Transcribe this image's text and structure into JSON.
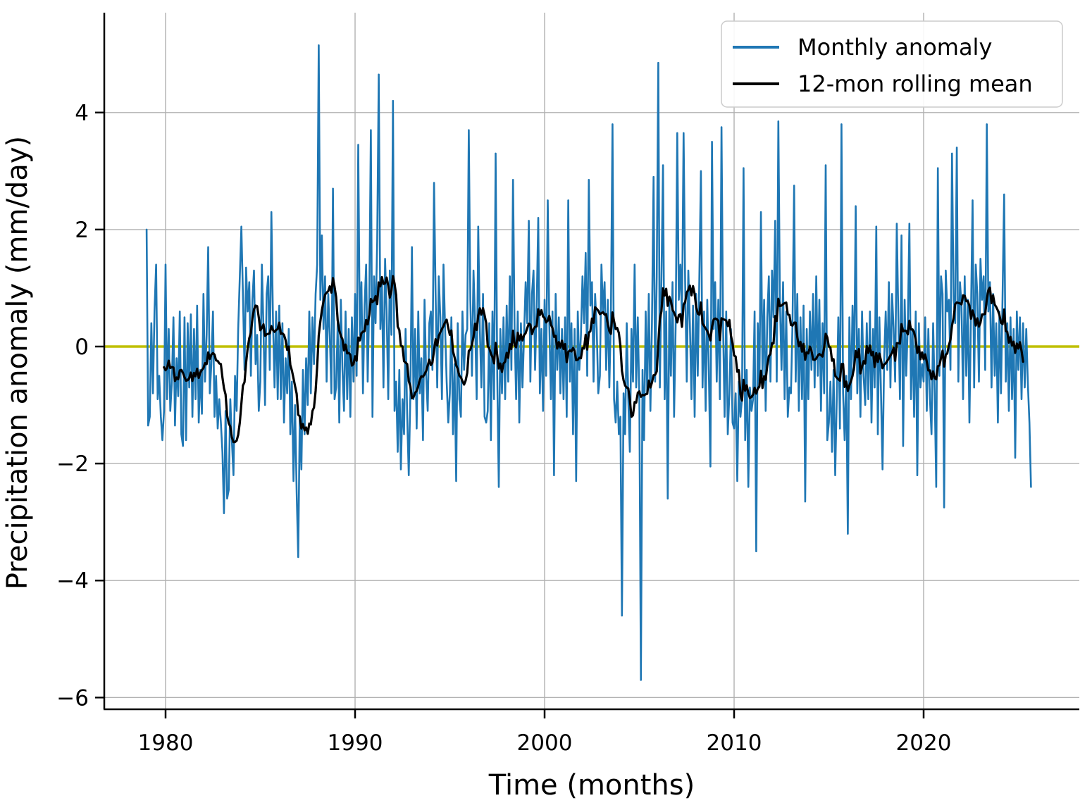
{
  "chart_data": {
    "type": "line",
    "title": "",
    "xlabel": "Time (months)",
    "ylabel": "Precipitation anomaly (mm/day)",
    "x_start_year": 1979,
    "x_step_months": 1,
    "xlim": [
      1976.8,
      2028.2
    ],
    "ylim": [
      -6.2,
      5.7
    ],
    "grid": true,
    "legend_position": "upper right",
    "colors": {
      "monthly_anomaly": "#1f77b4",
      "rolling_mean": "#000000",
      "zero_line": "#bfbf00",
      "grid": "#b0b0b0",
      "spine": "#000000"
    },
    "xticks": [
      {
        "value": 1980,
        "label": "1980"
      },
      {
        "value": 1990,
        "label": "1990"
      },
      {
        "value": 2000,
        "label": "2000"
      },
      {
        "value": 2010,
        "label": "2010"
      },
      {
        "value": 2020,
        "label": "2020"
      }
    ],
    "yticks": [
      {
        "value": -6,
        "label": "−6"
      },
      {
        "value": -4,
        "label": "−4"
      },
      {
        "value": -2,
        "label": "−2"
      },
      {
        "value": 0,
        "label": "0"
      },
      {
        "value": 2,
        "label": "2"
      },
      {
        "value": 4,
        "label": "4"
      }
    ],
    "zero_line_value": 0,
    "series": [
      {
        "name": "Monthly anomaly",
        "color": "#1f77b4",
        "width": 2.6,
        "values": [
          2.0,
          -1.35,
          -1.2,
          0.4,
          -0.8,
          0.6,
          1.4,
          -0.9,
          -0.5,
          -1.2,
          -1.6,
          -1.1,
          1.4,
          -0.9,
          0.3,
          -1.1,
          -0.6,
          0.5,
          -1.35,
          -0.2,
          -0.85,
          0.6,
          -1.5,
          -1.7,
          0.5,
          -1.6,
          0.4,
          -0.7,
          0.55,
          -1.2,
          0.3,
          -0.9,
          0.7,
          -1.3,
          -0.4,
          -1.15,
          0.9,
          -0.6,
          0.2,
          1.7,
          -0.8,
          -0.3,
          0.6,
          -1.2,
          -0.5,
          -1.4,
          -0.9,
          -1.3,
          -1.8,
          -2.85,
          -1.1,
          -2.6,
          -2.45,
          -0.9,
          -1.6,
          -2.2,
          -0.5,
          -1.1,
          0.3,
          1.2,
          2.05,
          0.9,
          -0.4,
          1.35,
          0.6,
          1.1,
          -0.5,
          0.8,
          1.3,
          -0.3,
          0.2,
          -1.1,
          -0.6,
          1.4,
          0.3,
          -1.0,
          0.9,
          1.2,
          -0.4,
          2.3,
          0.5,
          -0.7,
          0.6,
          -0.9,
          0.7,
          -0.9,
          0.4,
          -1.3,
          -0.2,
          -0.8,
          0.3,
          -1.5,
          -0.6,
          -2.3,
          -1.0,
          -2.5,
          -3.6,
          -1.2,
          -2.1,
          -0.4,
          -1.5,
          -0.2,
          -1.0,
          0.6,
          -0.8,
          0.5,
          -0.3,
          0.9,
          1.4,
          5.15,
          0.8,
          1.9,
          0.3,
          1.2,
          -0.6,
          0.9,
          0.2,
          -0.8,
          2.7,
          -0.9,
          -0.7,
          0.4,
          -1.3,
          0.8,
          -0.4,
          -1.1,
          0.6,
          -0.9,
          0.3,
          -1.2,
          0.5,
          -0.6,
          0.9,
          -0.5,
          3.45,
          0.2,
          1.1,
          -0.8,
          0.7,
          1.4,
          -0.6,
          0.8,
          3.7,
          -1.2,
          1.2,
          0.4,
          1.8,
          4.65,
          0.3,
          1.1,
          -0.7,
          1.5,
          0.6,
          -0.9,
          1.3,
          0.2,
          4.2,
          -1.1,
          -0.6,
          -1.8,
          -0.4,
          -2.1,
          -0.9,
          -1.5,
          0.3,
          -1.2,
          -2.2,
          -0.8,
          1.7,
          -0.9,
          0.3,
          -1.4,
          0.6,
          -0.8,
          -0.2,
          -1.6,
          0.8,
          -0.5,
          -1.1,
          0.4,
          0.6,
          -0.4,
          2.8,
          0.9,
          -0.7,
          1.2,
          0.5,
          -0.9,
          1.4,
          0.3,
          -0.6,
          -1.3,
          -0.8,
          0.5,
          -1.5,
          -0.3,
          -2.3,
          0.4,
          -0.9,
          -1.2,
          0.6,
          -0.4,
          0.2,
          0.3,
          3.7,
          0.8,
          -0.5,
          1.3,
          0.4,
          -0.9,
          2.05,
          0.3,
          -0.7,
          0.9,
          -1.2,
          -1.3,
          -1.1,
          0.4,
          -1.6,
          0.6,
          -0.9,
          3.3,
          -0.5,
          -2.4,
          0.3,
          -0.8,
          0.5,
          -0.9,
          0.7,
          -0.6,
          1.2,
          -0.4,
          2.85,
          0.3,
          -0.9,
          0.6,
          -1.3,
          0.4,
          -0.7,
          0.2,
          1.1,
          0.4,
          2.15,
          -0.6,
          0.9,
          1.3,
          -0.4,
          0.7,
          2.2,
          -0.8,
          0.3,
          -1.1,
          0.8,
          -0.5,
          2.5,
          0.4,
          -0.9,
          0.6,
          -2.2,
          0.9,
          -0.4,
          0.5,
          -0.8,
          0.3,
          -0.9,
          0.5,
          -1.2,
          2.5,
          -0.6,
          0.4,
          -1.5,
          0.3,
          -2.3,
          0.6,
          -0.4,
          0.2,
          1.2,
          0.4,
          1.6,
          -0.5,
          2.85,
          0.7,
          1.1,
          -0.6,
          0.9,
          0.3,
          -0.8,
          -0.5,
          1.4,
          0.6,
          1.1,
          -0.4,
          0.8,
          -0.7,
          0.5,
          3.8,
          -0.9,
          -1.3,
          -0.6,
          -1.5,
          -1.2,
          -4.6,
          -0.8,
          -1.5,
          0.4,
          -0.9,
          -1.8,
          0.3,
          -0.6,
          1.4,
          -0.7,
          0.5,
          -0.9,
          -5.7,
          -0.4,
          -1.6,
          0.6,
          -0.8,
          0.9,
          -1.1,
          0.4,
          2.9,
          -0.6,
          1.2,
          4.85,
          -0.7,
          1.2,
          3.1,
          -0.9,
          0.6,
          -2.6,
          0.8,
          -0.5,
          1.1,
          -1.2,
          0.4,
          3.65,
          0.8,
          1.4,
          0.5,
          3.65,
          1.1,
          -0.6,
          1.3,
          0.4,
          -0.9,
          0.7,
          -1.2,
          0.9,
          -0.5,
          1.2,
          3.0,
          -0.7,
          0.6,
          -1.1,
          0.8,
          -0.4,
          -2.05,
          3.5,
          0.3,
          1.1,
          -0.6,
          0.8,
          -0.9,
          3.75,
          0.4,
          -1.2,
          0.6,
          -1.5,
          -0.8,
          0.3,
          -1.3,
          -1.4,
          -0.8,
          -2.3,
          -0.6,
          -1.2,
          -0.9,
          3.05,
          -1.6,
          -0.4,
          -2.4,
          -0.7,
          -1.1,
          -0.9,
          0.6,
          -3.5,
          0.4,
          -0.7,
          2.3,
          -0.5,
          0.8,
          -1.1,
          0.5,
          1.2,
          -0.6,
          1.3,
          0.5,
          2.15,
          -0.6,
          3.85,
          0.8,
          -0.4,
          1.1,
          -0.9,
          0.6,
          -1.2,
          -0.7,
          -0.8,
          0.4,
          2.75,
          -0.6,
          0.9,
          -1.1,
          0.5,
          -0.9,
          0.7,
          -2.65,
          0.3,
          -0.9,
          0.6,
          -0.4,
          0.9,
          -0.7,
          1.2,
          -0.5,
          0.8,
          -1.1,
          0.4,
          -0.8,
          3.1,
          -1.6,
          -1.3,
          -0.6,
          -1.8,
          -0.4,
          -2.2,
          -0.9,
          0.5,
          -1.4,
          3.8,
          -0.8,
          -1.6,
          -0.5,
          -3.2,
          0.5,
          -0.9,
          0.7,
          -0.4,
          2.4,
          -0.8,
          0.3,
          -1.2,
          0.6,
          -0.5,
          -1.0,
          0.4,
          -0.9,
          0.6,
          -1.3,
          0.3,
          -0.7,
          2.05,
          -1.5,
          0.5,
          -0.8,
          -2.1,
          -0.2,
          0.6,
          -0.4,
          1.1,
          -0.7,
          0.9,
          0.3,
          -0.6,
          2.1,
          0.5,
          -0.9,
          1.9,
          -1.7,
          0.8,
          -0.5,
          0.4,
          2.1,
          -0.9,
          0.3,
          -1.2,
          0.6,
          -2.2,
          0.4,
          -0.7,
          -0.3,
          -0.6,
          0.5,
          -1.1,
          0.3,
          -0.9,
          -1.5,
          0.4,
          -0.8,
          -2.4,
          3.05,
          -0.5,
          1.2,
          0.9,
          -2.75,
          1.3,
          0.6,
          0.8,
          -0.4,
          3.3,
          0.8,
          0.4,
          3.4,
          -0.6,
          1.1,
          0.7,
          -0.9,
          1.2,
          -0.5,
          0.8,
          -1.3,
          0.6,
          2.5,
          -0.7,
          1.4,
          0.9,
          -0.6,
          1.5,
          0.8,
          1.2,
          -0.4,
          3.8,
          0.6,
          1.1,
          -0.7,
          0.9,
          -0.5,
          0.4,
          -1.3,
          0.6,
          -0.8,
          0.9,
          2.6,
          -0.6,
          0.4,
          -1.1,
          0.5,
          -0.9,
          0.3,
          -1.9,
          0.6,
          -0.4,
          0.5,
          -0.9,
          0.4,
          -0.7,
          0.3,
          -0.65,
          -1.3,
          -2.4
        ]
      },
      {
        "name": "12-mon rolling mean",
        "color": "#000000",
        "width": 3.2,
        "derived": "rolling_mean_12"
      }
    ]
  }
}
